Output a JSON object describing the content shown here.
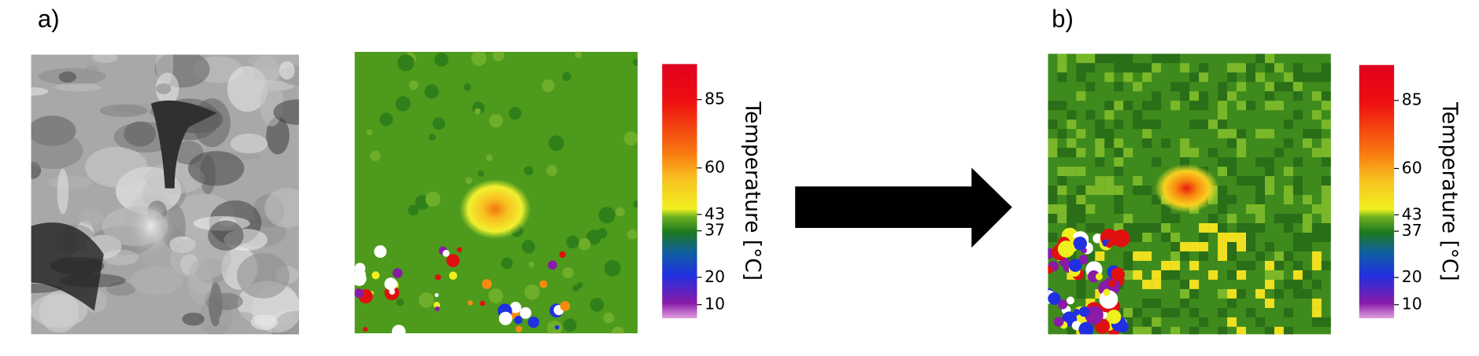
{
  "panels": [
    {
      "label": "a)"
    },
    {
      "label": "b)"
    }
  ],
  "colorbars": [
    {
      "title": "Temperature [°C]",
      "lim": [
        5,
        98
      ],
      "ticks": [
        10,
        20,
        37,
        43,
        60,
        85
      ]
    },
    {
      "title": "Temperature [°C]",
      "lim": [
        5,
        98
      ],
      "ticks": [
        10,
        20,
        37,
        43,
        60,
        85
      ]
    }
  ]
}
